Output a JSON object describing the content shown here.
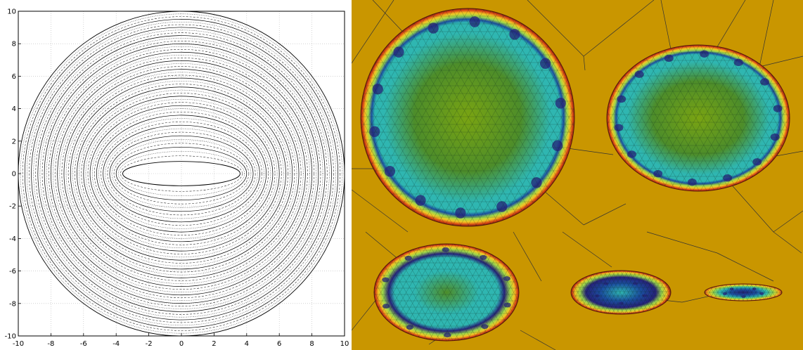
{
  "left_plot": {
    "x_ticks": [
      "-10",
      "-8",
      "-6",
      "-4",
      "-2",
      "0",
      "2",
      "4",
      "6",
      "8",
      "10"
    ],
    "y_ticks": [
      "10",
      "8",
      "6",
      "4",
      "2",
      "0",
      "-2",
      "-4",
      "-6",
      "-8",
      "-10"
    ],
    "x_range": [
      -10,
      10
    ],
    "y_range": [
      -10,
      10
    ],
    "grid": "dotted",
    "outer_contour_radius": 10,
    "inner_cavity_half_width": 3.6,
    "inner_cavity_half_height": 0.75,
    "contour_count": 16
  },
  "right_panel": {
    "background_color": "#c99600",
    "colormap": [
      "#8b2a10",
      "#d84315",
      "#f3c623",
      "#9dd84a",
      "#2fb6b1",
      "#1b4fa0",
      "#26217a",
      "#4d8d2a",
      "#7aa412"
    ],
    "shapes": [
      {
        "name": "large-circle",
        "aspect": 1.0
      },
      {
        "name": "ellipse-upper-right",
        "aspect": 0.8
      },
      {
        "name": "ellipse-lower-left",
        "aspect": 0.6
      },
      {
        "name": "ellipse-lower-center",
        "aspect": 0.38
      },
      {
        "name": "ellipse-lower-right",
        "aspect": 0.2
      }
    ]
  }
}
